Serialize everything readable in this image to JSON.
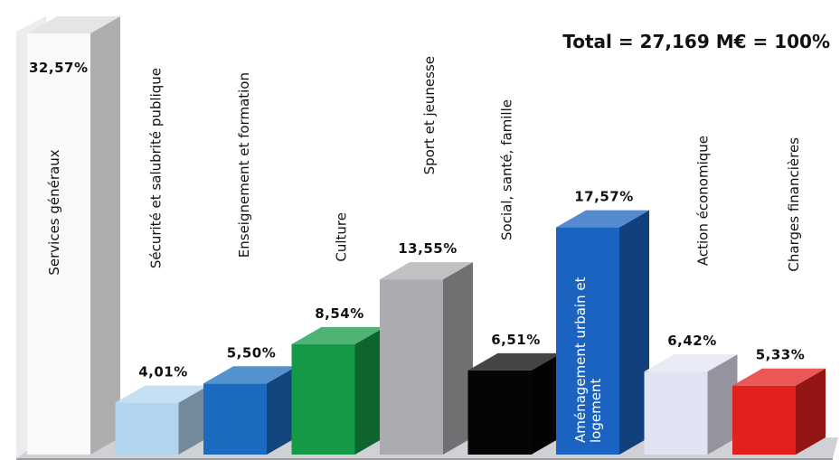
{
  "chart_data": {
    "type": "bar",
    "title": "Total = 27,169 M€ = 100%",
    "categories": [
      "Services généraux",
      "Sécurité et salubrité publique",
      "Enseignement et formation",
      "Culture",
      "Sport et jeunesse",
      "Social, santé, famille",
      "Aménagement urbain et logement",
      "Action économique",
      "Charges financières"
    ],
    "values": [
      32.57,
      4.01,
      5.5,
      8.54,
      13.55,
      6.51,
      17.57,
      6.42,
      5.33
    ],
    "value_labels": [
      "32,57%",
      "4,01%",
      "5,50%",
      "8,54%",
      "13,55%",
      "6,51%",
      "17,57%",
      "6,42%",
      "5,33%"
    ],
    "xlabel": "",
    "ylabel": "",
    "ylim": [
      0,
      32.57
    ],
    "grid": false,
    "legend": "none",
    "colors": [
      "#f9f9f9",
      "#b2d4ef",
      "#1b6cc0",
      "#149a47",
      "#acacb0",
      "#050505",
      "#1a63c0",
      "#e2e3f2",
      "#e2201e"
    ]
  }
}
